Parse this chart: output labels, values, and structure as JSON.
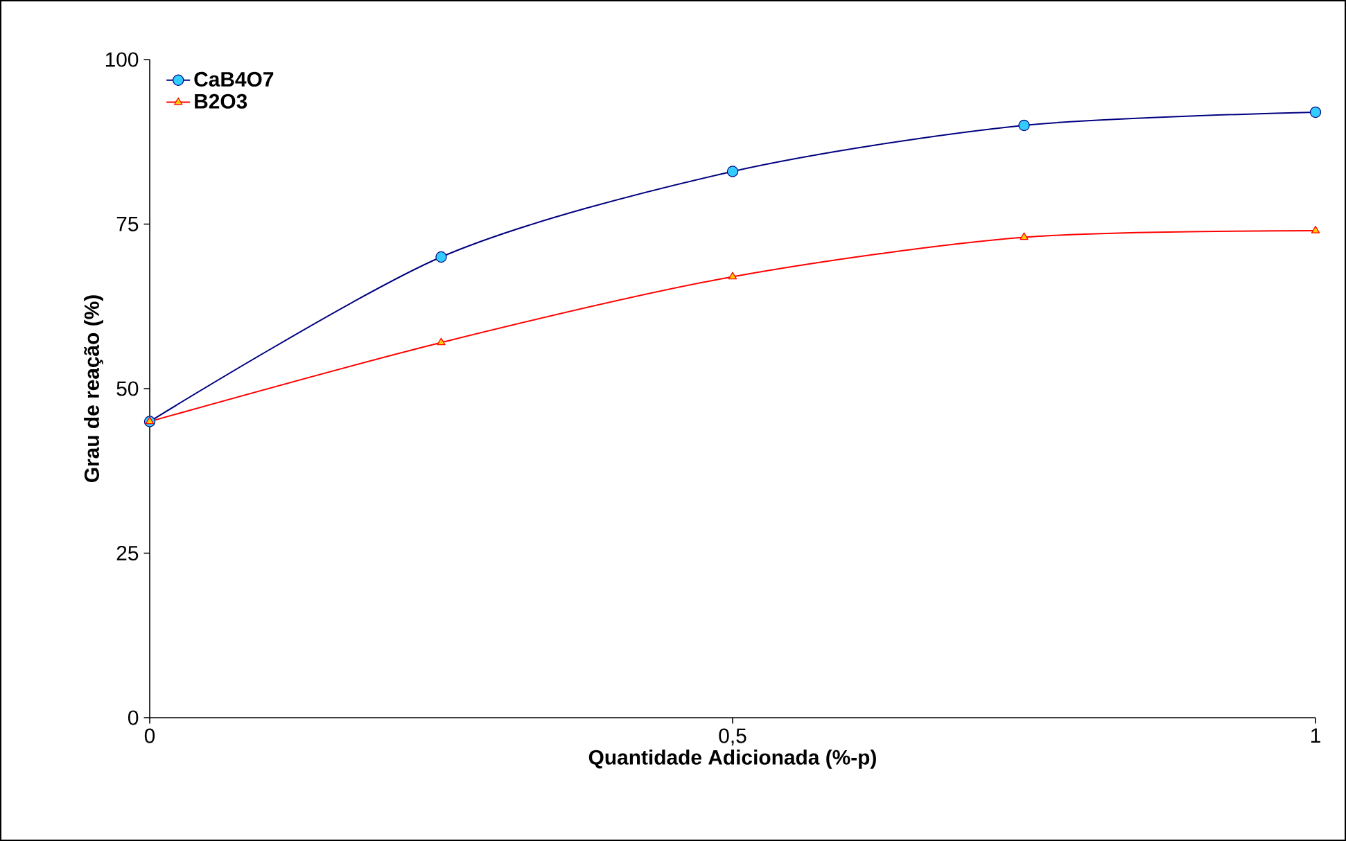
{
  "chart_data": {
    "type": "line",
    "xlabel": "Quantidade Adicionada (%-p)",
    "ylabel": "Grau de reação (%)",
    "x": [
      0,
      0.25,
      0.5,
      0.75,
      1
    ],
    "series": [
      {
        "name": "CaB4O7",
        "color": "#000080",
        "marker": "circle",
        "values": [
          45,
          70,
          83,
          90,
          92
        ]
      },
      {
        "name": "B2O3",
        "color": "#ff0000",
        "marker": "triangle",
        "values": [
          45,
          57,
          67,
          73,
          74
        ]
      }
    ],
    "xlim": [
      0,
      1
    ],
    "xticks": [
      0,
      {
        "value": 0.5,
        "label": "0,5"
      },
      1
    ],
    "ylim": [
      0,
      100
    ],
    "yticks": [
      0,
      25,
      50,
      75,
      100
    ],
    "grid": false,
    "legend": "top left",
    "line_style": "solid"
  }
}
